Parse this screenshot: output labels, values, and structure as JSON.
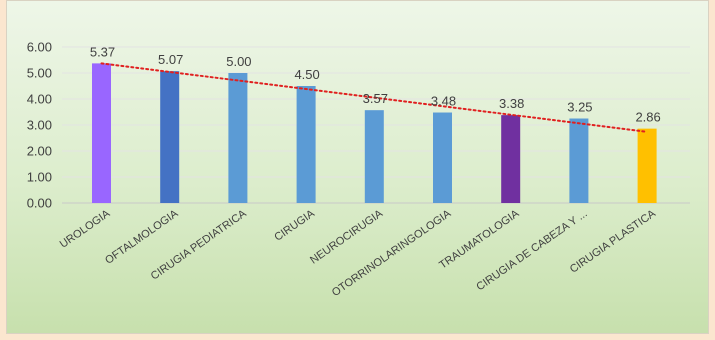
{
  "chart_data": {
    "type": "bar",
    "categories": [
      "UROLOGIA",
      "OFTALMOLOGIA",
      "CIRUGIA PEDIATRICA",
      "CIRUGIA",
      "NEUROCIRUGIA",
      "OTORRINOLARINGOLOGIA",
      "TRAUMATOLOGIA",
      "CIRUGIA DE CABEZA Y ...",
      "CIRUGIA PLASTICA"
    ],
    "values": [
      5.37,
      5.07,
      5.0,
      4.5,
      3.57,
      3.48,
      3.38,
      3.25,
      2.86
    ],
    "value_labels": [
      "5.37",
      "5.07",
      "5.00",
      "4.50",
      "3.57",
      "3.48",
      "3.38",
      "3.25",
      "2.86"
    ],
    "bar_colors": [
      "#9966ff",
      "#4472c4",
      "#5b9bd5",
      "#5b9bd5",
      "#5b9bd5",
      "#5b9bd5",
      "#7030a0",
      "#5b9bd5",
      "#ffc000"
    ],
    "ylim": [
      0,
      6
    ],
    "yticks": [
      "0.00",
      "1.00",
      "2.00",
      "3.00",
      "4.00",
      "5.00",
      "6.00"
    ],
    "trendline": {
      "type": "linear",
      "color": "#e02020",
      "style": "dotted"
    },
    "grid": true,
    "title": "",
    "xlabel": "",
    "ylabel": ""
  }
}
